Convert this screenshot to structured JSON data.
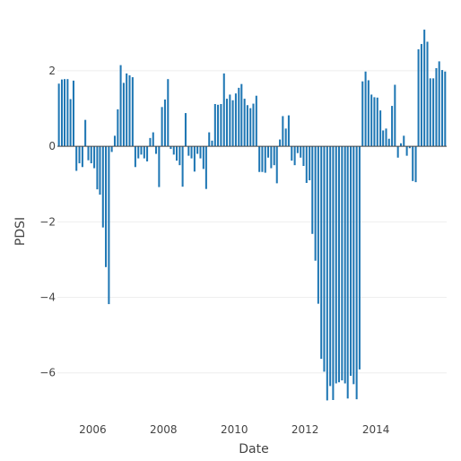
{
  "chart_data": {
    "type": "bar",
    "title": "",
    "xlabel": "Date",
    "ylabel": "PDSI",
    "ylim": [
      -7.1,
      3.4
    ],
    "xlim": [
      "2005-01-01",
      "2016-01-01"
    ],
    "yticks": [
      -6,
      -4,
      -2,
      0,
      2
    ],
    "xticks": [
      "2006",
      "2008",
      "2010",
      "2012",
      "2014"
    ],
    "grid": "horizontal",
    "bar_color": "#1f77b4",
    "series": [
      {
        "x": [
          "2005-01",
          "2005-02",
          "2005-03",
          "2005-04",
          "2005-05",
          "2005-06",
          "2005-07",
          "2005-08",
          "2005-09",
          "2005-10",
          "2005-11",
          "2005-12",
          "2006-01",
          "2006-02",
          "2006-03",
          "2006-04",
          "2006-05",
          "2006-06",
          "2006-07",
          "2006-08",
          "2006-09",
          "2006-10",
          "2006-11",
          "2006-12",
          "2007-01",
          "2007-02",
          "2007-03",
          "2007-04",
          "2007-05",
          "2007-06",
          "2007-07",
          "2007-08",
          "2007-09",
          "2007-10",
          "2007-11",
          "2007-12",
          "2008-01",
          "2008-02",
          "2008-03",
          "2008-04",
          "2008-05",
          "2008-06",
          "2008-07",
          "2008-08",
          "2008-09",
          "2008-10",
          "2008-11",
          "2008-12",
          "2009-01",
          "2009-02",
          "2009-03",
          "2009-04",
          "2009-05",
          "2009-06",
          "2009-07",
          "2009-08",
          "2009-09",
          "2009-10",
          "2009-11",
          "2009-12",
          "2010-01",
          "2010-02",
          "2010-03",
          "2010-04",
          "2010-05",
          "2010-06",
          "2010-07",
          "2010-08",
          "2010-09",
          "2010-10",
          "2010-11",
          "2010-12",
          "2011-01",
          "2011-02",
          "2011-03",
          "2011-04",
          "2011-05",
          "2011-06",
          "2011-07",
          "2011-08",
          "2011-09",
          "2011-10",
          "2011-11",
          "2011-12",
          "2012-01",
          "2012-02",
          "2012-03",
          "2012-04",
          "2012-05",
          "2012-06",
          "2012-07",
          "2012-08",
          "2012-09",
          "2012-10",
          "2012-11",
          "2012-12",
          "2013-01",
          "2013-02",
          "2013-03",
          "2013-04",
          "2013-05",
          "2013-06",
          "2013-07",
          "2013-08",
          "2013-09",
          "2013-10",
          "2013-11",
          "2013-12",
          "2014-01",
          "2014-02",
          "2014-03",
          "2014-04",
          "2014-05",
          "2014-06",
          "2014-07",
          "2014-08",
          "2014-09",
          "2014-10",
          "2014-11",
          "2014-12",
          "2015-01",
          "2015-02",
          "2015-03",
          "2015-04",
          "2015-05",
          "2015-06",
          "2015-07",
          "2015-08",
          "2015-09",
          "2015-10",
          "2015-11",
          "2015-12"
        ],
        "values": [
          1.66,
          1.77,
          1.78,
          1.78,
          1.25,
          1.74,
          -0.65,
          -0.45,
          -0.55,
          0.7,
          -0.37,
          -0.45,
          -0.58,
          -1.14,
          -1.28,
          -2.15,
          -3.2,
          -4.18,
          -0.15,
          0.28,
          0.98,
          2.15,
          1.68,
          1.93,
          1.88,
          1.83,
          -0.55,
          -0.32,
          -0.22,
          -0.32,
          -0.4,
          0.22,
          0.37,
          -0.2,
          -1.08,
          1.04,
          1.24,
          1.78,
          -0.07,
          -0.22,
          -0.38,
          -0.5,
          -1.07,
          0.88,
          -0.25,
          -0.32,
          -0.67,
          -0.2,
          -0.32,
          -0.6,
          -1.13,
          0.37,
          0.15,
          1.12,
          1.1,
          1.12,
          1.93,
          1.26,
          1.37,
          1.22,
          1.4,
          1.55,
          1.65,
          1.26,
          1.09,
          1.01,
          1.13,
          1.34,
          -0.68,
          -0.68,
          -0.7,
          -0.3,
          -0.58,
          -0.5,
          -0.98,
          0.18,
          0.8,
          0.47,
          0.82,
          -0.38,
          -0.5,
          -0.18,
          -0.3,
          -0.52,
          -0.97,
          -0.9,
          -2.32,
          -3.03,
          -4.17,
          -5.63,
          -5.97,
          -6.73,
          -6.35,
          -6.72,
          -6.28,
          -6.25,
          -6.2,
          -6.28,
          -6.68,
          -6.08,
          -6.3,
          -6.7,
          -5.91,
          1.72,
          1.98,
          1.75,
          1.37,
          1.3,
          1.29,
          0.95,
          0.42,
          0.47,
          0.2,
          1.07,
          1.63,
          -0.3,
          0.08,
          0.28,
          -0.25,
          -0.05,
          -0.92,
          -0.95,
          2.57,
          2.71,
          3.09,
          2.77,
          1.8,
          1.8,
          2.07,
          2.25,
          2.02,
          1.98
        ]
      }
    ]
  }
}
